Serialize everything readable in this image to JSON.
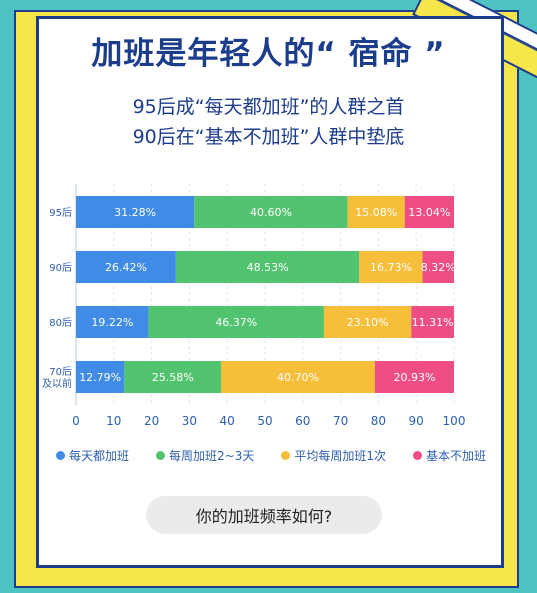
{
  "header": {
    "title": "加班是年轻人的“ 宿命 ”",
    "subtitle_line1": "95后成“每天都加班”的人群之首",
    "subtitle_line2": "90后在“基本不加班”人群中垫底"
  },
  "colors": {
    "blue": "#3f8be6",
    "green": "#52c46f",
    "orange": "#f7be3a",
    "pink": "#ef4e82",
    "text": "#1c3c8c",
    "axis_text": "#2d5fb0"
  },
  "chart_data": {
    "type": "bar",
    "orientation": "horizontal",
    "stacked": true,
    "categories": [
      [
        "95后"
      ],
      [
        "90后"
      ],
      [
        "80后"
      ],
      [
        "70后",
        "及以前"
      ]
    ],
    "series": [
      {
        "name": "每天都加班",
        "values": [
          31.28,
          26.42,
          19.22,
          12.79
        ],
        "labels": [
          "31.28%",
          "26.42%",
          "19.22%",
          "12.79%"
        ]
      },
      {
        "name": "每周加班2~3天",
        "values": [
          40.6,
          48.53,
          46.37,
          25.58
        ],
        "labels": [
          "40.60%",
          "48.53%",
          "46.37%",
          "25.58%"
        ]
      },
      {
        "name": "平均每周加班1次",
        "values": [
          15.08,
          16.73,
          23.1,
          40.7
        ],
        "labels": [
          "15.08%",
          "16.73%",
          "23.10%",
          "40.70%"
        ]
      },
      {
        "name": "基本不加班",
        "values": [
          13.04,
          8.32,
          11.31,
          20.93
        ],
        "labels": [
          "13.04%",
          "8.32%",
          "11.31%",
          "20.93%"
        ]
      }
    ],
    "xlim": [
      0,
      100
    ],
    "xticks": [
      "0",
      "10",
      "20",
      "30",
      "40",
      "50",
      "60",
      "70",
      "80",
      "90",
      "100"
    ],
    "grid": true,
    "legend_position": "bottom"
  },
  "legend": [
    {
      "label": "每天都加班",
      "color": "#3f8be6"
    },
    {
      "label": "每周加班2~3天",
      "color": "#52c46f"
    },
    {
      "label": "平均每周加班1次",
      "color": "#f7be3a"
    },
    {
      "label": "基本不加班",
      "color": "#ef4e82"
    }
  ],
  "question_button": {
    "label": "你的加班频率如何?"
  }
}
